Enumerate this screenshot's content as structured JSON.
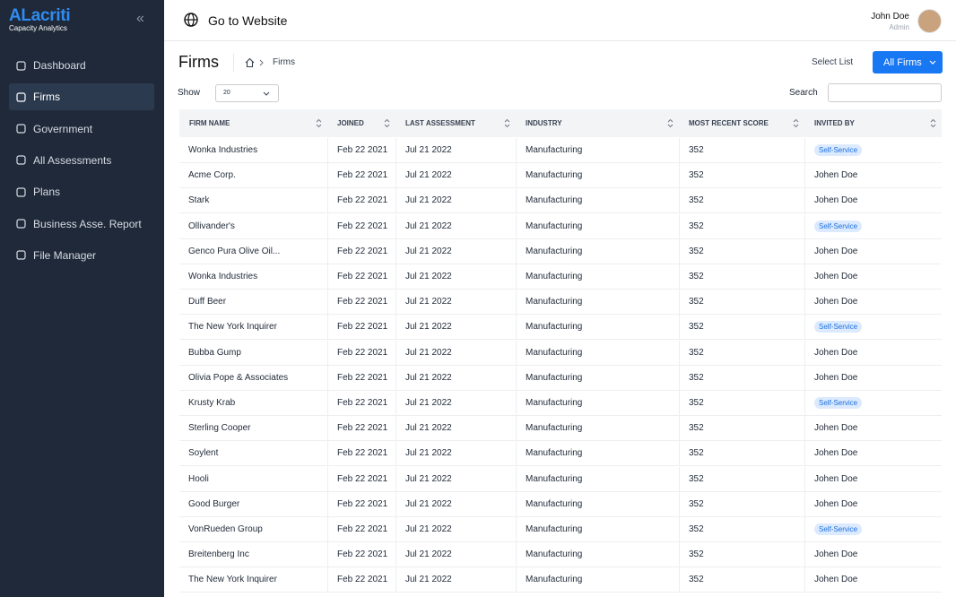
{
  "sidebar": {
    "logo": "ALacriti",
    "logo_subtitle": "Capacity Analytics",
    "collapse": "«",
    "nav": [
      "Dashboard",
      "Firms",
      "Government",
      "All Assessments",
      "Plans",
      "Business Asse. Report",
      "File Manager"
    ],
    "active": 1
  },
  "topbar": {
    "link": "Go to Website",
    "user_name": "John Doe",
    "user_role": "Admin"
  },
  "header": {
    "title": "Firms",
    "breadcrumb": "Firms",
    "select_label": "Select List",
    "button": "All Firms"
  },
  "controls": {
    "show_label": "Show",
    "show_value": "20",
    "search_label": "Search"
  },
  "table": {
    "columns": [
      "FIRM NAME",
      "JOINED",
      "LAST ASSESSMENT",
      "INDUSTRY",
      "MOST RECENT SCORE",
      "INVITED BY"
    ],
    "rows": [
      {
        "cells": [
          "Wonka Industries",
          "Feb 22 2021",
          "Jul 21 2022",
          "Manufacturing",
          "352",
          "Self-Service"
        ],
        "badge": true
      },
      {
        "cells": [
          "Acme Corp.",
          "Feb 22 2021",
          "Jul 21 2022",
          "Manufacturing",
          "352",
          "Johen Doe"
        ],
        "badge": false
      },
      {
        "cells": [
          "Stark",
          "Feb 22 2021",
          "Jul 21 2022",
          "Manufacturing",
          "352",
          "Johen Doe"
        ],
        "badge": false
      },
      {
        "cells": [
          "Ollivander's",
          "Feb 22 2021",
          "Jul 21 2022",
          "Manufacturing",
          "352",
          "Self-Service"
        ],
        "badge": true
      },
      {
        "cells": [
          "Genco Pura Olive Oil...",
          "Feb 22 2021",
          "Jul 21 2022",
          "Manufacturing",
          "352",
          "Johen Doe"
        ],
        "badge": false
      },
      {
        "cells": [
          "Wonka Industries",
          "Feb 22 2021",
          "Jul 21 2022",
          "Manufacturing",
          "352",
          "Johen Doe"
        ],
        "badge": false
      },
      {
        "cells": [
          "Duff Beer",
          "Feb 22 2021",
          "Jul 21 2022",
          "Manufacturing",
          "352",
          "Johen Doe"
        ],
        "badge": false
      },
      {
        "cells": [
          "The New York Inquirer",
          "Feb 22 2021",
          "Jul 21 2022",
          "Manufacturing",
          "352",
          "Self-Service"
        ],
        "badge": true
      },
      {
        "cells": [
          "Bubba Gump",
          "Feb 22 2021",
          "Jul 21 2022",
          "Manufacturing",
          "352",
          "Johen Doe"
        ],
        "badge": false
      },
      {
        "cells": [
          "Olivia Pope & Associates",
          "Feb 22 2021",
          "Jul 21 2022",
          "Manufacturing",
          "352",
          "Johen Doe"
        ],
        "badge": false
      },
      {
        "cells": [
          "Krusty Krab",
          "Feb 22 2021",
          "Jul 21 2022",
          "Manufacturing",
          "352",
          "Self-Service"
        ],
        "badge": true
      },
      {
        "cells": [
          "Sterling Cooper",
          "Feb 22 2021",
          "Jul 21 2022",
          "Manufacturing",
          "352",
          "Johen Doe"
        ],
        "badge": false
      },
      {
        "cells": [
          "Soylent",
          "Feb 22 2021",
          "Jul 21 2022",
          "Manufacturing",
          "352",
          "Johen Doe"
        ],
        "badge": false
      },
      {
        "cells": [
          "Hooli",
          "Feb 22 2021",
          "Jul 21 2022",
          "Manufacturing",
          "352",
          "Johen Doe"
        ],
        "badge": false
      },
      {
        "cells": [
          "Good Burger",
          "Feb 22 2021",
          "Jul 21 2022",
          "Manufacturing",
          "352",
          "Johen Doe"
        ],
        "badge": false
      },
      {
        "cells": [
          "VonRueden Group",
          "Feb 22 2021",
          "Jul 21 2022",
          "Manufacturing",
          "352",
          "Self-Service"
        ],
        "badge": true
      },
      {
        "cells": [
          "Breitenberg Inc",
          "Feb 22 2021",
          "Jul 21 2022",
          "Manufacturing",
          "352",
          "Johen Doe"
        ],
        "badge": false
      },
      {
        "cells": [
          "The New York Inquirer",
          "Feb 22 2021",
          "Jul 21 2022",
          "Manufacturing",
          "352",
          "Johen Doe"
        ],
        "badge": false
      }
    ]
  }
}
